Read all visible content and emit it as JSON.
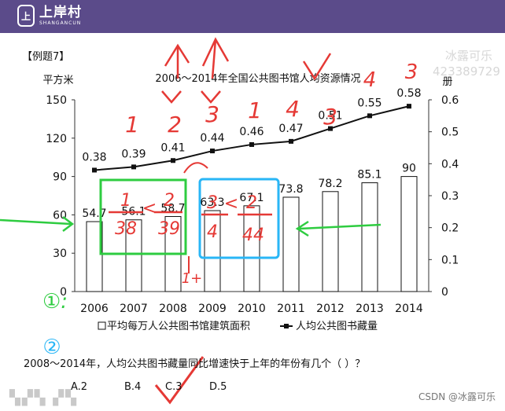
{
  "header": {
    "logo_mark": "上",
    "brand_name": "上岸村",
    "brand_sub": "SHANGANCUN"
  },
  "example_label": "【例题7】",
  "watermark": {
    "line1": "冰露可乐",
    "line2": "423389729"
  },
  "chart_data": {
    "type": "bar",
    "title": "2006～2014年全国公共图书馆人均资源情况",
    "categories": [
      "2006",
      "2007",
      "2008",
      "2009",
      "2010",
      "2011",
      "2012",
      "2013",
      "2014"
    ],
    "y_left_label": "平方米",
    "y_left_ticks": [
      0,
      30,
      60,
      90,
      120,
      150
    ],
    "y_left_lim": [
      0,
      150
    ],
    "y_right_label": "册",
    "y_right_ticks": [
      0,
      0.1,
      0.2,
      0.3,
      0.4,
      0.5,
      0.6
    ],
    "y_right_lim": [
      0,
      0.6
    ],
    "series": [
      {
        "name": "平均每万人公共图书馆建筑面积",
        "kind": "bar",
        "axis": "left",
        "values": [
          54.7,
          56.1,
          58.7,
          63.3,
          67.1,
          73.8,
          78.2,
          85.1,
          90
        ],
        "labels": [
          "54.7",
          "56.1",
          "58.7",
          "63.3",
          "67.1",
          "73.8",
          "78.2",
          "85.1",
          "90"
        ]
      },
      {
        "name": "人均公共图书藏量",
        "kind": "line",
        "axis": "right",
        "values": [
          0.38,
          0.39,
          0.41,
          0.44,
          0.46,
          0.47,
          0.51,
          0.55,
          0.58
        ],
        "labels": [
          "0.38",
          "0.39",
          "0.41",
          "0.44",
          "0.46",
          "0.47",
          "0.51",
          "0.55",
          "0.58"
        ]
      }
    ],
    "grid": false,
    "legend_placement": "bottom"
  },
  "question": "2008～2014年，人均公共图书藏量同比增速快于上年的年份有几个（  ）？",
  "options": [
    "A.2",
    "B.4",
    "C.3",
    "D.5"
  ],
  "csdn_credit": "CSDN @冰露可乐",
  "annotations": {
    "top_digits": [
      "1",
      "2",
      "3",
      "1",
      "4",
      "3"
    ],
    "step_marks": [
      "①:",
      "②"
    ],
    "fraction_1": "1/38",
    "fraction_2": "2/39",
    "fraction_3": "3/4",
    "fraction_4": "2/44",
    "small_note": "1+",
    "color_red": "#e53935",
    "color_green": "#2ecc40",
    "color_cyan": "#29b6f6"
  },
  "colors": {
    "header_bg": "#5b4b8a",
    "ink": "#111111"
  }
}
